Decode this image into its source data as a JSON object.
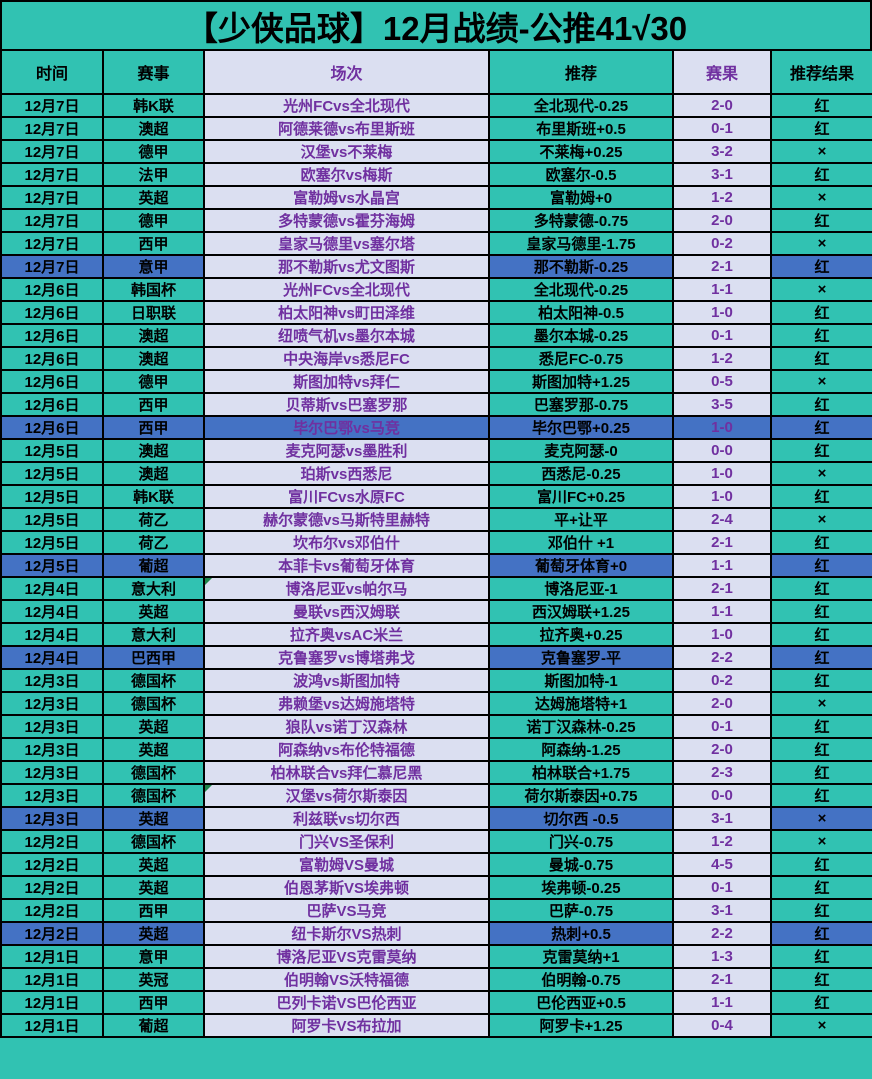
{
  "title": "【少侠品球】12月战绩-公推41√30",
  "columns": [
    "时间",
    "赛事",
    "场次",
    "推荐",
    "赛果",
    "推荐结果"
  ],
  "result_legend": {
    "win": "红",
    "loss": "×"
  },
  "colors": {
    "teal_background": "#31C2B2",
    "light_cell_background": "#DBDFF1",
    "highlight_blue": "#4472C4",
    "purple_text": "#7030A0",
    "border": "#000000",
    "comment_marker_green": "#1E8449"
  },
  "rows": [
    {
      "date": "12月7日",
      "league": "韩K联",
      "match": "光州FCvs全北现代",
      "pick": "全北现代-0.25",
      "score": "2-0",
      "result": "红",
      "highlight": "none",
      "marker": false
    },
    {
      "date": "12月7日",
      "league": "澳超",
      "match": "阿德莱德vs布里斯班",
      "pick": "布里斯班+0.5",
      "score": "0-1",
      "result": "红",
      "highlight": "none",
      "marker": false
    },
    {
      "date": "12月7日",
      "league": "德甲",
      "match": "汉堡vs不莱梅",
      "pick": "不莱梅+0.25",
      "score": "3-2",
      "result": "×",
      "highlight": "none",
      "marker": false
    },
    {
      "date": "12月7日",
      "league": "法甲",
      "match": "欧塞尔vs梅斯",
      "pick": "欧塞尔-0.5",
      "score": "3-1",
      "result": "红",
      "highlight": "none",
      "marker": false
    },
    {
      "date": "12月7日",
      "league": "英超",
      "match": "富勒姆vs水晶宫",
      "pick": "富勒姆+0",
      "score": "1-2",
      "result": "×",
      "highlight": "none",
      "marker": false
    },
    {
      "date": "12月7日",
      "league": "德甲",
      "match": "多特蒙德vs霍芬海姆",
      "pick": "多特蒙德-0.75",
      "score": "2-0",
      "result": "红",
      "highlight": "none",
      "marker": false
    },
    {
      "date": "12月7日",
      "league": "西甲",
      "match": "皇家马德里vs塞尔塔",
      "pick": "皇家马德里-1.75",
      "score": "0-2",
      "result": "×",
      "highlight": "none",
      "marker": false
    },
    {
      "date": "12月7日",
      "league": "意甲",
      "match": "那不勒斯vs尤文图斯",
      "pick": "那不勒斯-0.25",
      "score": "2-1",
      "result": "红",
      "highlight": "partial",
      "marker": false
    },
    {
      "date": "12月6日",
      "league": "韩国杯",
      "match": "光州FCvs全北现代",
      "pick": "全北现代-0.25",
      "score": "1-1",
      "result": "×",
      "highlight": "none",
      "marker": false
    },
    {
      "date": "12月6日",
      "league": "日职联",
      "match": "柏太阳神vs町田泽维",
      "pick": "柏太阳神-0.5",
      "score": "1-0",
      "result": "红",
      "highlight": "none",
      "marker": false
    },
    {
      "date": "12月6日",
      "league": "澳超",
      "match": "纽喷气机vs墨尔本城",
      "pick": "墨尔本城-0.25",
      "score": "0-1",
      "result": "红",
      "highlight": "none",
      "marker": false
    },
    {
      "date": "12月6日",
      "league": "澳超",
      "match": "中央海岸vs悉尼FC",
      "pick": "悉尼FC-0.75",
      "score": "1-2",
      "result": "红",
      "highlight": "none",
      "marker": false
    },
    {
      "date": "12月6日",
      "league": "德甲",
      "match": "斯图加特vs拜仁",
      "pick": "斯图加特+1.25",
      "score": "0-5",
      "result": "×",
      "highlight": "none",
      "marker": false
    },
    {
      "date": "12月6日",
      "league": "西甲",
      "match": "贝蒂斯vs巴塞罗那",
      "pick": "巴塞罗那-0.75",
      "score": "3-5",
      "result": "红",
      "highlight": "none",
      "marker": false
    },
    {
      "date": "12月6日",
      "league": "西甲",
      "match": "毕尔巴鄂vs马竞",
      "pick": "毕尔巴鄂+0.25",
      "score": "1-0",
      "result": "红",
      "highlight": "full",
      "marker": false
    },
    {
      "date": "12月5日",
      "league": "澳超",
      "match": "麦克阿瑟vs墨胜利",
      "pick": "麦克阿瑟-0",
      "score": "0-0",
      "result": "红",
      "highlight": "none",
      "marker": false
    },
    {
      "date": "12月5日",
      "league": "澳超",
      "match": "珀斯vs西悉尼",
      "pick": "西悉尼-0.25",
      "score": "1-0",
      "result": "×",
      "highlight": "none",
      "marker": false
    },
    {
      "date": "12月5日",
      "league": "韩K联",
      "match": "富川FCvs水原FC",
      "pick": "富川FC+0.25",
      "score": "1-0",
      "result": "红",
      "highlight": "none",
      "marker": false
    },
    {
      "date": "12月5日",
      "league": "荷乙",
      "match": "赫尔蒙德vs马斯特里赫特",
      "pick": "平+让平",
      "score": "2-4",
      "result": "×",
      "highlight": "none",
      "marker": false
    },
    {
      "date": "12月5日",
      "league": "荷乙",
      "match": "坎布尔vs邓伯什",
      "pick": "邓伯什 +1",
      "score": "2-1",
      "result": "红",
      "highlight": "none",
      "marker": false
    },
    {
      "date": "12月5日",
      "league": "葡超",
      "match": "本菲卡vs葡萄牙体育",
      "pick": "葡萄牙体育+0",
      "score": "1-1",
      "result": "红",
      "highlight": "partial",
      "marker": false
    },
    {
      "date": "12月4日",
      "league": "意大利",
      "match": "博洛尼亚vs帕尔马",
      "pick": "博洛尼亚-1",
      "score": "2-1",
      "result": "红",
      "highlight": "none",
      "marker": true
    },
    {
      "date": "12月4日",
      "league": "英超",
      "match": "曼联vs西汉姆联",
      "pick": "西汉姆联+1.25",
      "score": "1-1",
      "result": "红",
      "highlight": "none",
      "marker": false
    },
    {
      "date": "12月4日",
      "league": "意大利",
      "match": "拉齐奥vsAC米兰",
      "pick": "拉齐奥+0.25",
      "score": "1-0",
      "result": "红",
      "highlight": "none",
      "marker": false
    },
    {
      "date": "12月4日",
      "league": "巴西甲",
      "match": "克鲁塞罗vs博塔弗戈",
      "pick": "克鲁塞罗-平",
      "score": "2-2",
      "result": "红",
      "highlight": "partial",
      "marker": false
    },
    {
      "date": "12月3日",
      "league": "德国杯",
      "match": "波鸿vs斯图加特",
      "pick": "斯图加特-1",
      "score": "0-2",
      "result": "红",
      "highlight": "none",
      "marker": false
    },
    {
      "date": "12月3日",
      "league": "德国杯",
      "match": "弗赖堡vs达姆施塔特",
      "pick": "达姆施塔特+1",
      "score": "2-0",
      "result": "×",
      "highlight": "none",
      "marker": false
    },
    {
      "date": "12月3日",
      "league": "英超",
      "match": "狼队vs诺丁汉森林",
      "pick": "诺丁汉森林-0.25",
      "score": "0-1",
      "result": "红",
      "highlight": "none",
      "marker": false
    },
    {
      "date": "12月3日",
      "league": "英超",
      "match": "阿森纳vs布伦特福德",
      "pick": "阿森纳-1.25",
      "score": "2-0",
      "result": "红",
      "highlight": "none",
      "marker": false
    },
    {
      "date": "12月3日",
      "league": "德国杯",
      "match": "柏林联合vs拜仁慕尼黑",
      "pick": "柏林联合+1.75",
      "score": "2-3",
      "result": "红",
      "highlight": "none",
      "marker": false
    },
    {
      "date": "12月3日",
      "league": "德国杯",
      "match": "汉堡vs荷尔斯泰因",
      "pick": "荷尔斯泰因+0.75",
      "score": "0-0",
      "result": "红",
      "highlight": "none",
      "marker": true
    },
    {
      "date": "12月3日",
      "league": "英超",
      "match": "利兹联vs切尔西",
      "pick": "切尔西 -0.5",
      "score": "3-1",
      "result": "×",
      "highlight": "partial",
      "marker": false
    },
    {
      "date": "12月2日",
      "league": "德国杯",
      "match": "门兴VS圣保利",
      "pick": "门兴-0.75",
      "score": "1-2",
      "result": "×",
      "highlight": "none",
      "marker": false
    },
    {
      "date": "12月2日",
      "league": "英超",
      "match": "富勒姆VS曼城",
      "pick": "曼城-0.75",
      "score": "4-5",
      "result": "红",
      "highlight": "none",
      "marker": false
    },
    {
      "date": "12月2日",
      "league": "英超",
      "match": "伯恩茅斯VS埃弗顿",
      "pick": "埃弗顿-0.25",
      "score": "0-1",
      "result": "红",
      "highlight": "none",
      "marker": false
    },
    {
      "date": "12月2日",
      "league": "西甲",
      "match": "巴萨VS马竞",
      "pick": "巴萨-0.75",
      "score": "3-1",
      "result": "红",
      "highlight": "none",
      "marker": false
    },
    {
      "date": "12月2日",
      "league": "英超",
      "match": "纽卡斯尔VS热刺",
      "pick": "热刺+0.5",
      "score": "2-2",
      "result": "红",
      "highlight": "partial",
      "marker": false
    },
    {
      "date": "12月1日",
      "league": "意甲",
      "match": "博洛尼亚VS克雷莫纳",
      "pick": "克雷莫纳+1",
      "score": "1-3",
      "result": "红",
      "highlight": "none",
      "marker": false
    },
    {
      "date": "12月1日",
      "league": "英冠",
      "match": "伯明翰VS沃特福德",
      "pick": "伯明翰-0.75",
      "score": "2-1",
      "result": "红",
      "highlight": "none",
      "marker": false
    },
    {
      "date": "12月1日",
      "league": "西甲",
      "match": "巴列卡诺VS巴伦西亚",
      "pick": "巴伦西亚+0.5",
      "score": "1-1",
      "result": "红",
      "highlight": "none",
      "marker": false
    },
    {
      "date": "12月1日",
      "league": "葡超",
      "match": "阿罗卡VS布拉加",
      "pick": "阿罗卡+1.25",
      "score": "0-4",
      "result": "×",
      "highlight": "none",
      "marker": false
    }
  ]
}
